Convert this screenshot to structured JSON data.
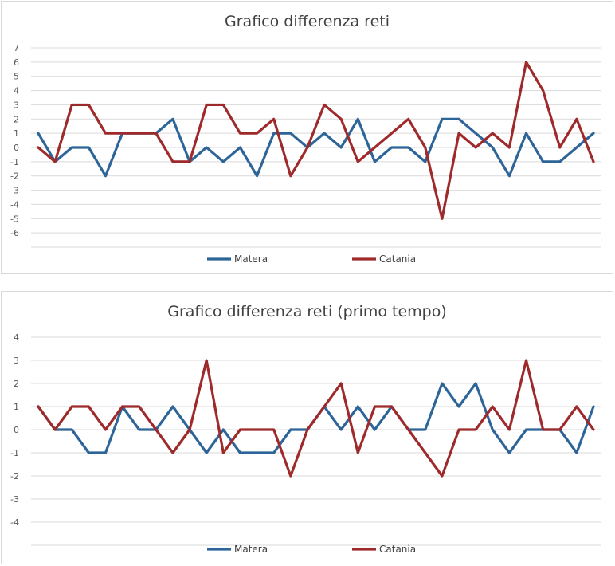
{
  "chart_data": [
    {
      "type": "line",
      "title": "Grafico differenza reti",
      "xlabel": "",
      "ylabel": "",
      "ylim": [
        -7,
        7
      ],
      "yticks": [
        7,
        6,
        5,
        4,
        3,
        2,
        1,
        0,
        -1,
        -2,
        -3,
        -4,
        -5,
        -6
      ],
      "grid": true,
      "legend": "bottom",
      "series": [
        {
          "name": "Matera",
          "color": "#2e6599",
          "values": [
            1,
            -1,
            0,
            0,
            -2,
            1,
            1,
            1,
            2,
            -1,
            0,
            -1,
            0,
            -2,
            1,
            1,
            0,
            1,
            0,
            2,
            -1,
            0,
            0,
            -1,
            2,
            2,
            1,
            0,
            -2,
            1,
            -1,
            -1,
            0,
            1
          ]
        },
        {
          "name": "Catania",
          "color": "#9e2a2b",
          "values": [
            0,
            -1,
            3,
            3,
            1,
            1,
            1,
            1,
            -1,
            -1,
            3,
            3,
            1,
            1,
            2,
            -2,
            0,
            3,
            2,
            -1,
            0,
            1,
            2,
            0,
            -5,
            1,
            0,
            1,
            0,
            6,
            4,
            0,
            2,
            -1
          ]
        }
      ]
    },
    {
      "type": "line",
      "title": "Grafico differenza reti (primo tempo)",
      "xlabel": "",
      "ylabel": "",
      "ylim": [
        -5,
        4
      ],
      "yticks": [
        4,
        3,
        2,
        1,
        0,
        -1,
        -2,
        -3,
        -4
      ],
      "grid": true,
      "legend": "bottom",
      "series": [
        {
          "name": "Matera",
          "color": "#2e6599",
          "values": [
            1,
            0,
            0,
            -1,
            -1,
            1,
            0,
            0,
            1,
            0,
            -1,
            0,
            -1,
            -1,
            -1,
            0,
            0,
            1,
            0,
            1,
            0,
            1,
            0,
            0,
            2,
            1,
            2,
            0,
            -1,
            0,
            0,
            0,
            -1,
            1
          ]
        },
        {
          "name": "Catania",
          "color": "#9e2a2b",
          "values": [
            1,
            0,
            1,
            1,
            0,
            1,
            1,
            0,
            -1,
            0,
            3,
            -1,
            0,
            0,
            0,
            -2,
            0,
            1,
            2,
            -1,
            1,
            1,
            0,
            -1,
            -2,
            0,
            0,
            1,
            0,
            3,
            0,
            0,
            1,
            0
          ]
        }
      ]
    }
  ]
}
